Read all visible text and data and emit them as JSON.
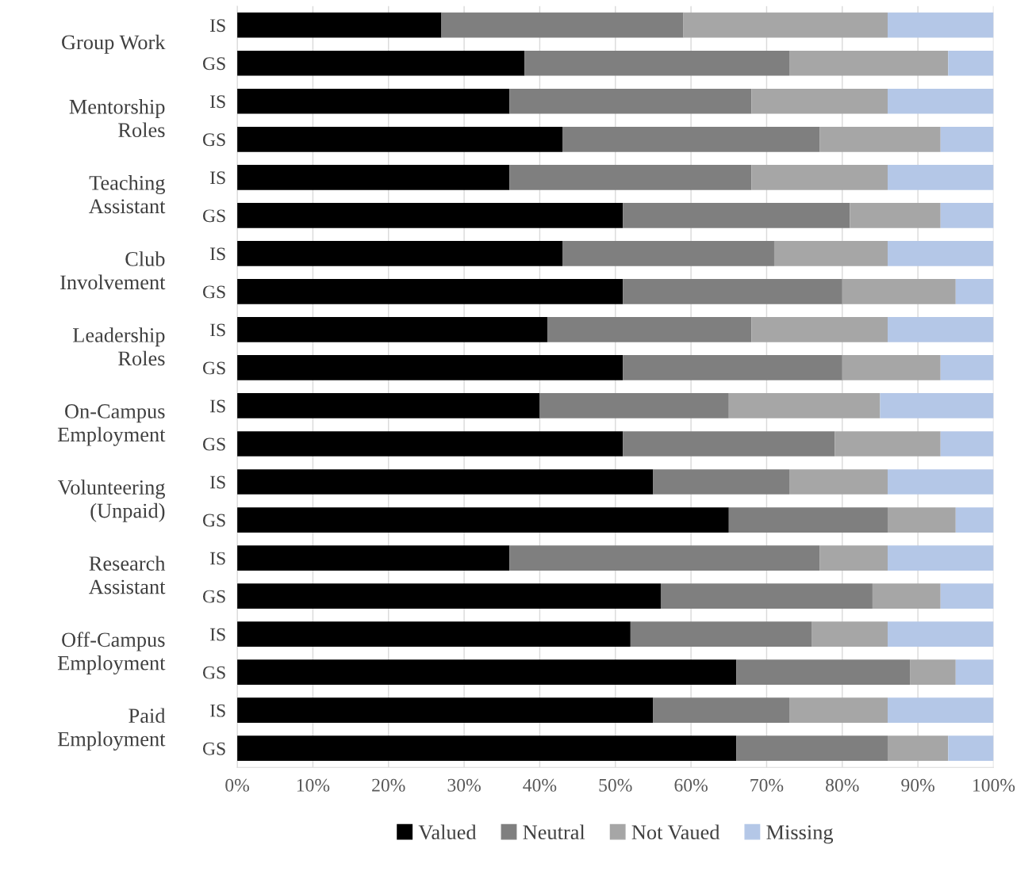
{
  "chart_data": {
    "type": "bar",
    "orientation": "horizontal",
    "stacked": true,
    "categories": [
      "IS",
      "GS",
      "IS",
      "GS",
      "IS",
      "GS",
      "IS",
      "GS",
      "IS",
      "GS",
      "IS",
      "GS",
      "IS",
      "GS",
      "IS",
      "GS",
      "IS",
      "GS",
      "IS",
      "GS"
    ],
    "series": [
      {
        "name": "Valued",
        "color": "#000000",
        "values": [
          27,
          38,
          36,
          43,
          36,
          51,
          43,
          51,
          41,
          51,
          40,
          51,
          55,
          65,
          36,
          56,
          52,
          66,
          55,
          66
        ]
      },
      {
        "name": "Neutral",
        "color": "#7f7f7f",
        "values": [
          32,
          35,
          32,
          34,
          32,
          30,
          28,
          29,
          27,
          29,
          25,
          28,
          18,
          21,
          41,
          28,
          24,
          23,
          18,
          20
        ]
      },
      {
        "name": "Not Vaued",
        "color": "#a6a6a6",
        "values": [
          27,
          21,
          18,
          16,
          18,
          12,
          15,
          15,
          18,
          13,
          20,
          14,
          13,
          9,
          9,
          9,
          10,
          6,
          13,
          8
        ]
      },
      {
        "name": "Missing",
        "color": "#b4c7e7",
        "values": [
          14,
          6,
          14,
          7,
          14,
          7,
          14,
          5,
          14,
          7,
          15,
          7,
          14,
          5,
          14,
          7,
          14,
          5,
          14,
          6
        ]
      }
    ],
    "xlim": [
      0,
      100
    ],
    "xticks": [
      {
        "value": 0,
        "label": "0%"
      },
      {
        "value": 10,
        "label": "10%"
      },
      {
        "value": 20,
        "label": "20%"
      },
      {
        "value": 30,
        "label": "30%"
      },
      {
        "value": 40,
        "label": "40%"
      },
      {
        "value": 50,
        "label": "50%"
      },
      {
        "value": 60,
        "label": "60%"
      },
      {
        "value": 70,
        "label": "70%"
      },
      {
        "value": 80,
        "label": "80%"
      },
      {
        "value": 90,
        "label": "90%"
      },
      {
        "value": 100,
        "label": "100%"
      }
    ],
    "annotations": [
      "Group Work",
      "Mentorship\nRoles",
      "Teaching\nAssistant",
      "Club\nInvolvement",
      "Leadership\nRoles",
      "On-Campus\nEmployment",
      "Volunteering\n(Unpaid)",
      "Research\nAssistant",
      "Off-Campus\nEmployment",
      "Paid\nEmployment"
    ],
    "grid": "x",
    "legend": "bottom"
  }
}
